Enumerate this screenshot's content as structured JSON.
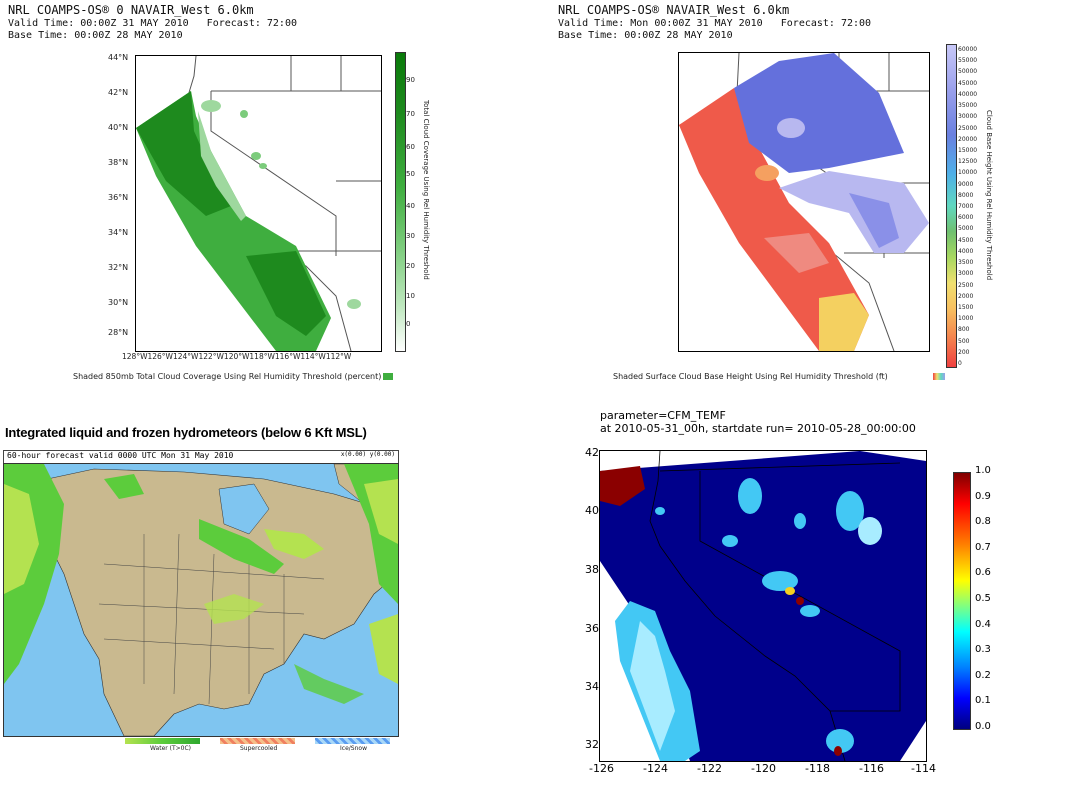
{
  "panel1": {
    "header": [
      "NRL COAMPS-OS® 0 NAVAIR_West 6.0km",
      "Valid Time: 00:00Z 31 MAY 2010   Forecast: 72:00",
      "Base Time: 00:00Z 28 MAY 2010"
    ],
    "lat_ticks": [
      "44°N",
      "42°N",
      "40°N",
      "38°N",
      "36°N",
      "34°N",
      "32°N",
      "30°N",
      "28°N"
    ],
    "lon_ticks": "128°W126°W124°W122°W120°W118°W116°W114°W112°W",
    "colorbar_labels": [
      "90",
      "70",
      "60",
      "50",
      "40",
      "30",
      "20",
      "10",
      "0"
    ],
    "colorbar_title": "Total Cloud Coverage Using Rel Humidity Threshold",
    "caption": "Shaded 850mb Total Cloud Coverage Using Rel Humidity Threshold (percent)",
    "colors": {
      "dark": "#1e8a1e",
      "mid": "#3fae3f",
      "light": "#9ed89e"
    }
  },
  "panel2": {
    "header": [
      "NRL COAMPS-OS® NAVAIR_West 6.0km",
      "Valid Time: Mon 00:00Z 31 MAY 2010   Forecast: 72:00",
      "Base Time: 00:00Z 28 MAY 2010"
    ],
    "colorbar_labels": [
      "60000",
      "55000",
      "50000",
      "45000",
      "40000",
      "35000",
      "30000",
      "25000",
      "20000",
      "15000",
      "12500",
      "10000",
      "9000",
      "8000",
      "7000",
      "6000",
      "5000",
      "4500",
      "4000",
      "3500",
      "3000",
      "2500",
      "2000",
      "1500",
      "1000",
      "800",
      "500",
      "200",
      "0"
    ],
    "colorbar_title": "Cloud Base Height Using Rel Humidity Threshold",
    "caption": "Shaded Surface Cloud Base Height Using Rel Humidity Threshold (ft)",
    "colors": {
      "red": "#ef5a4a",
      "blue": "#6470dc",
      "lavender": "#b8b8f0",
      "orange": "#f5a060",
      "yellow": "#f4d060"
    }
  },
  "panel3": {
    "title": "Integrated liquid and frozen hydrometeors (below 6 Kft MSL)",
    "bar_left": "60-hour forecast valid 0000 UTC Mon 31 May 2010",
    "bar_right": "x(0.00) y(0.00)",
    "legend": [
      "Water (T>0C)",
      "Supercooled",
      "Ice/Snow"
    ],
    "colors": {
      "ocean": "#7fc5f0",
      "land": "#c9b98f",
      "cloud": "#5ccc3c",
      "cloud_light": "#b4e250"
    }
  },
  "panel4": {
    "header": [
      "parameter=CFM_TEMF",
      "at 2010-05-31_00h, startdate run= 2010-05-28_00:00:00"
    ],
    "y_ticks": [
      "42",
      "40",
      "38",
      "36",
      "34",
      "32"
    ],
    "x_ticks": [
      "-126",
      "-124",
      "-122",
      "-120",
      "-118",
      "-116",
      "-114"
    ],
    "colorbar_labels": [
      "1.0",
      "0.9",
      "0.8",
      "0.7",
      "0.6",
      "0.5",
      "0.4",
      "0.3",
      "0.2",
      "0.1",
      "0.0"
    ],
    "colors": {
      "navy": "#00008b",
      "cyan": "#43c8f4",
      "light_cyan": "#a8ecff",
      "red": "#8b0000"
    }
  }
}
